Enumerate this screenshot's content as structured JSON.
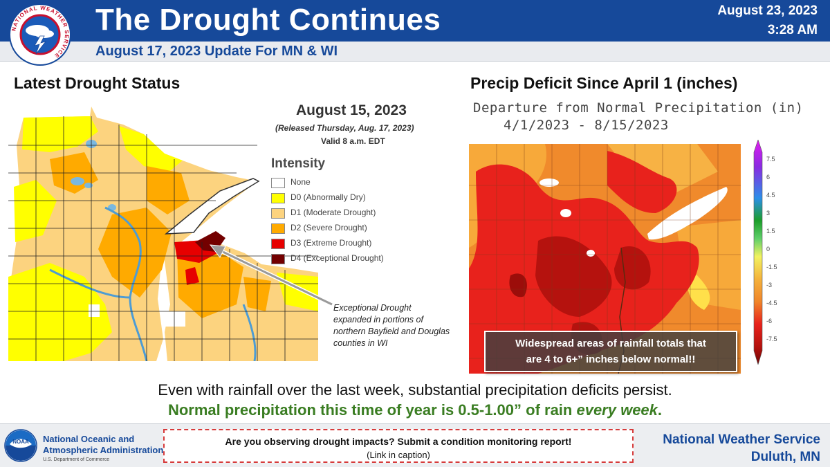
{
  "header": {
    "title": "The Drought Continues",
    "subtitle": "August 17, 2023 Update For MN & WI",
    "date": "August 23, 2023",
    "time": "3:28 AM",
    "logo_text": "NATIONAL WEATHER SERVICE",
    "logo_icon": "nws-logo-icon"
  },
  "left_panel": {
    "heading": "Latest Drought Status",
    "map_date": "August 15, 2023",
    "released": "(Released Thursday, Aug. 17, 2023)",
    "valid": "Valid 8 a.m. EDT",
    "legend_title": "Intensity",
    "legend": [
      {
        "label": "None",
        "color": "#ffffff"
      },
      {
        "label": "D0 (Abnormally Dry)",
        "color": "#ffff00"
      },
      {
        "label": "D1 (Moderate Drought)",
        "color": "#fcd37f"
      },
      {
        "label": "D2 (Severe Drought)",
        "color": "#ffaa00"
      },
      {
        "label": "D3 (Extreme Drought)",
        "color": "#e60000"
      },
      {
        "label": "D4 (Exceptional Drought)",
        "color": "#730000"
      }
    ],
    "annotation": "Exceptional Drought expanded in portions of northern Bayfield and Douglas counties in WI"
  },
  "right_panel": {
    "heading": "Precip Deficit Since April 1 (inches)",
    "map_title_line1": "Departure from Normal Precipitation (in)",
    "map_title_line2": "4/1/2023 - 8/15/2023",
    "colorbar_ticks": [
      "7.5",
      "6",
      "4.5",
      "3",
      "1.5",
      "0",
      "-1.5",
      "-3",
      "-4.5",
      "-6",
      "-7.5"
    ],
    "callout_line1": "Widespread areas of rainfall totals that",
    "callout_line2": "are 4 to 6+” inches below normal!!"
  },
  "statements": {
    "line1": "Even with rainfall over the last week, substantial precipitation deficits persist.",
    "line2_prefix": "Normal precipitation this time of year is 0.5-1.00” of rain ",
    "line2_emphasis": "every week",
    "line2_suffix": "."
  },
  "footer": {
    "noaa_name_line1": "National Oceanic and",
    "noaa_name_line2": "Atmospheric Administration",
    "noaa_dept": "U.S. Department of Commerce",
    "report_line1": "Are you observing drought impacts? Submit a condition monitoring report!",
    "report_line2": "(Link in caption)",
    "office_line1": "National Weather Service",
    "office_line2": "Duluth, MN"
  },
  "colors": {
    "header_blue": "#16499a",
    "statement_green": "#3a7d22",
    "report_border_red": "#d63b3b"
  }
}
